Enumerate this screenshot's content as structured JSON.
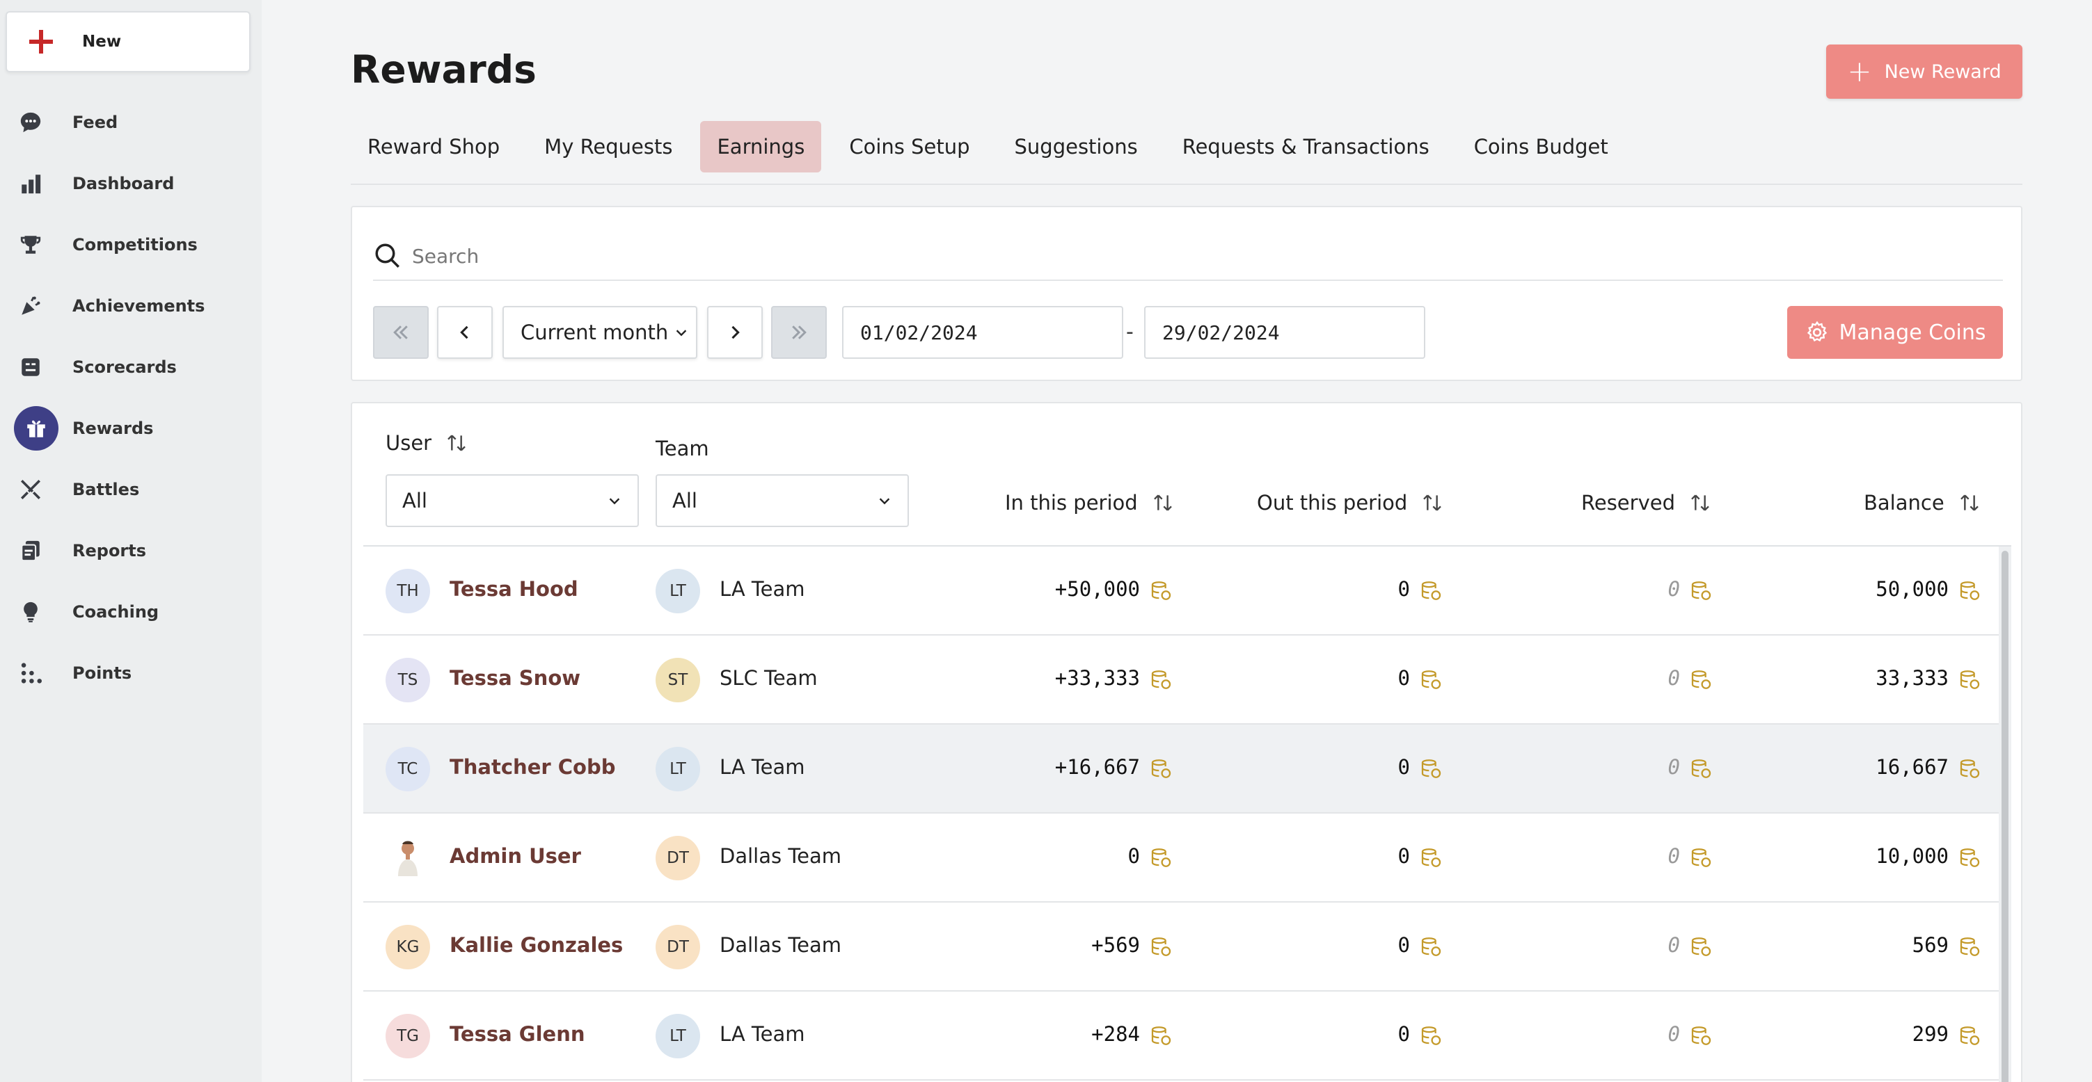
{
  "sidebar": {
    "new_label": "New",
    "items": [
      {
        "label": "Feed",
        "icon": "chat-bubble-icon"
      },
      {
        "label": "Dashboard",
        "icon": "bar-chart-icon"
      },
      {
        "label": "Competitions",
        "icon": "trophy-icon"
      },
      {
        "label": "Achievements",
        "icon": "party-popper-icon"
      },
      {
        "label": "Scorecards",
        "icon": "scorecard-icon"
      },
      {
        "label": "Rewards",
        "icon": "gift-icon",
        "active": true
      },
      {
        "label": "Battles",
        "icon": "crossed-swords-icon"
      },
      {
        "label": "Reports",
        "icon": "reports-icon"
      },
      {
        "label": "Coaching",
        "icon": "lightbulb-icon"
      },
      {
        "label": "Points",
        "icon": "dots-grid-icon"
      }
    ]
  },
  "header": {
    "title": "Rewards",
    "new_reward_label": "New Reward"
  },
  "tabs": [
    {
      "label": "Reward Shop"
    },
    {
      "label": "My Requests"
    },
    {
      "label": "Earnings",
      "active": true
    },
    {
      "label": "Coins Setup"
    },
    {
      "label": "Suggestions"
    },
    {
      "label": "Requests & Transactions"
    },
    {
      "label": "Coins Budget"
    }
  ],
  "filters": {
    "search_placeholder": "Search",
    "period_label": "Current month",
    "date_from": "01/02/2024",
    "date_separator": "-",
    "date_to": "29/02/2024",
    "manage_coins_label": "Manage Coins"
  },
  "table": {
    "columns": {
      "user": "User",
      "team": "Team",
      "in_period": "In this period",
      "out_period": "Out this period",
      "reserved": "Reserved",
      "balance": "Balance"
    },
    "user_filter": "All",
    "team_filter": "All",
    "rows": [
      {
        "initials": "TH",
        "name": "Tessa Hood",
        "team_initials": "LT",
        "team": "LA Team",
        "in": "+50,000",
        "out": "0",
        "reserved": "0",
        "balance": "50,000"
      },
      {
        "initials": "TS",
        "name": "Tessa Snow",
        "team_initials": "ST",
        "team": "SLC Team",
        "in": "+33,333",
        "out": "0",
        "reserved": "0",
        "balance": "33,333"
      },
      {
        "initials": "TC",
        "name": "Thatcher Cobb",
        "team_initials": "LT",
        "team": "LA Team",
        "in": "+16,667",
        "out": "0",
        "reserved": "0",
        "balance": "16,667"
      },
      {
        "initials": "",
        "name": "Admin User",
        "team_initials": "DT",
        "team": "Dallas Team",
        "in": "0",
        "out": "0",
        "reserved": "0",
        "balance": "10,000"
      },
      {
        "initials": "KG",
        "name": "Kallie Gonzales",
        "team_initials": "DT",
        "team": "Dallas Team",
        "in": "+569",
        "out": "0",
        "reserved": "0",
        "balance": "569"
      },
      {
        "initials": "TG",
        "name": "Tessa Glenn",
        "team_initials": "LT",
        "team": "LA Team",
        "in": "+284",
        "out": "0",
        "reserved": "0",
        "balance": "299"
      }
    ]
  },
  "colors": {
    "accent": "#ee8a85",
    "active_tab": "#e8c7c7",
    "active_nav": "#3e3f86",
    "user_name": "#6b3a34",
    "coin": "#c49a2a"
  }
}
